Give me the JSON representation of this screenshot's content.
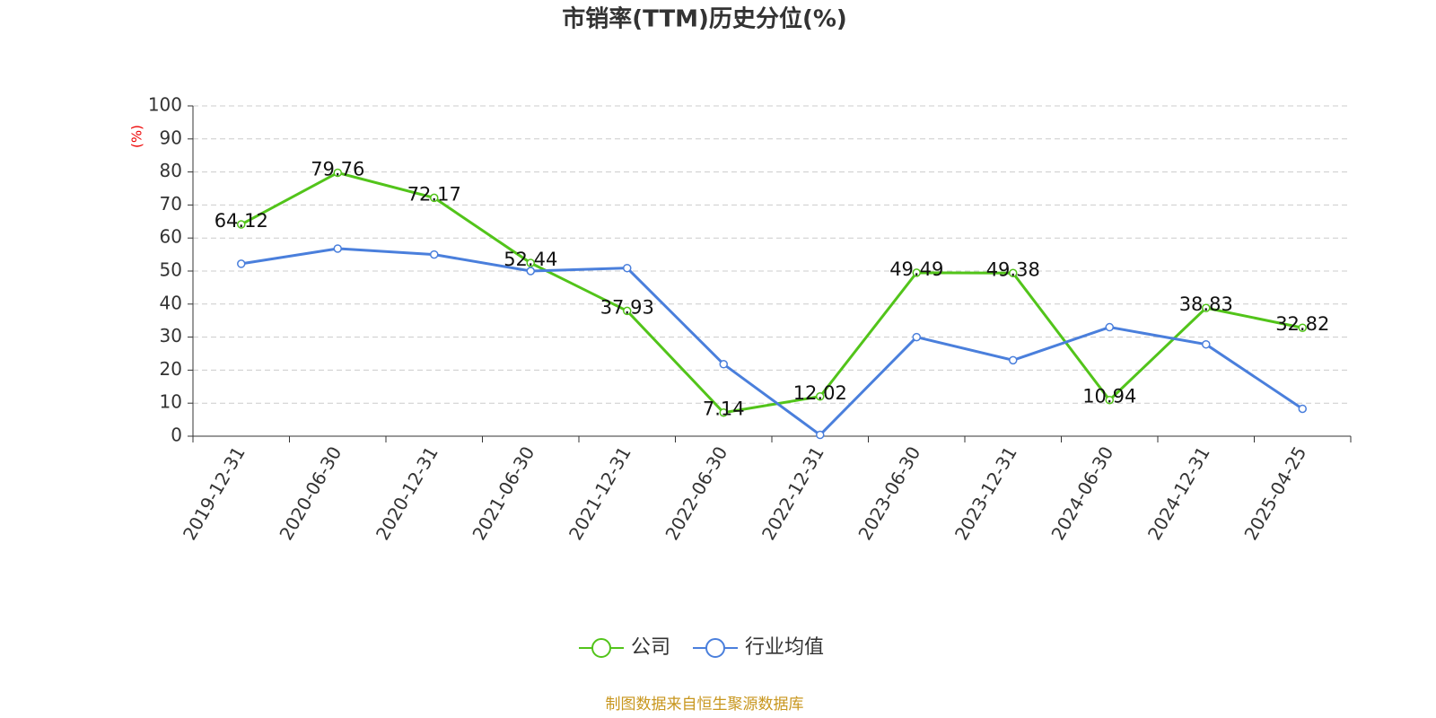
{
  "chart_data": {
    "type": "line",
    "title": "市销率(TTM)历史分位(%)",
    "y_label": "(%)",
    "categories": [
      "2019-12-31",
      "2020-06-30",
      "2020-12-31",
      "2021-06-30",
      "2021-12-31",
      "2022-06-30",
      "2022-12-31",
      "2023-06-30",
      "2023-12-31",
      "2024-06-30",
      "2024-12-31",
      "2025-04-25"
    ],
    "series": [
      {
        "name": "公司",
        "color": "#52c41a",
        "values": [
          64.12,
          79.76,
          72.17,
          52.44,
          37.93,
          7.14,
          12.02,
          49.49,
          49.38,
          10.94,
          38.83,
          32.82
        ],
        "show_labels": true
      },
      {
        "name": "行业均值",
        "color": "#4a7fdc",
        "values": [
          52.2,
          56.8,
          55.0,
          50.0,
          50.9,
          21.8,
          0.4,
          30.0,
          23.0,
          33.0,
          27.8,
          8.3
        ],
        "show_labels": false
      }
    ],
    "ylim": [
      0,
      100
    ],
    "yticks": [
      0,
      10,
      20,
      30,
      40,
      50,
      60,
      70,
      80,
      90,
      100
    ],
    "grid": true,
    "source": "制图数据来自恒生聚源数据库"
  }
}
